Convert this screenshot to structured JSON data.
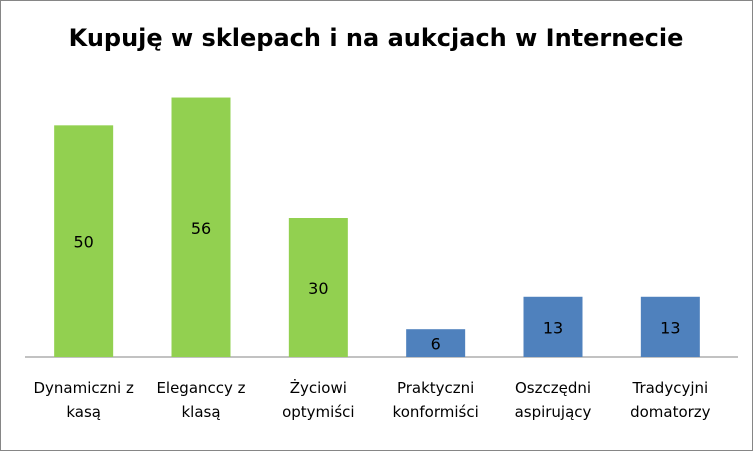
{
  "chart_data": {
    "type": "bar",
    "title": "Kupuję w sklepach i na aukcjach w Internecie",
    "categories": [
      "Dynamiczni z kasą",
      "Eleganccy z klasą",
      "Życiowi optymiści",
      "Praktyczni konformiści",
      "Oszczędni aspirujący",
      "Tradycyjni domatorzy"
    ],
    "values": [
      50,
      56,
      30,
      6,
      13,
      13
    ],
    "colors": [
      "#92d050",
      "#92d050",
      "#92d050",
      "#4f81bd",
      "#4f81bd",
      "#4f81bd"
    ],
    "ylim": [
      0,
      60
    ]
  }
}
